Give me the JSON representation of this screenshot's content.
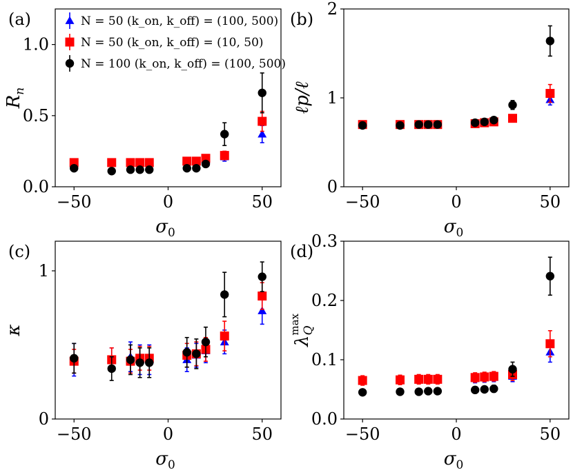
{
  "colors": {
    "blue": "#0000ff",
    "red": "#ff0000",
    "black": "#000000"
  },
  "legend": [
    {
      "label": "N = 50 (k_on, k_off) = (100, 500)",
      "color": "#0000ff",
      "marker": "triangle"
    },
    {
      "label": "N = 50 (k_on, k_off) = (10, 50)",
      "color": "#ff0000",
      "marker": "square"
    },
    {
      "label": "N = 100 (k_on, k_off) = (100, 500)",
      "color": "#000000",
      "marker": "circle"
    }
  ],
  "chart_data": [
    {
      "panel": "(a)",
      "type": "scatter",
      "xlabel": "σ0",
      "ylabel": "R_n",
      "xlim": [
        -60,
        60
      ],
      "ylim": [
        0,
        1.25
      ],
      "xticks": [
        -50,
        0,
        50
      ],
      "xtick_labels": [
        "−50",
        "0",
        "50"
      ],
      "yticks": [
        0,
        0.5,
        1.0
      ],
      "ytick_labels": [
        "0.0",
        "0.5",
        "1.0"
      ],
      "x": [
        -50,
        -30,
        -20,
        -15,
        -10,
        10,
        15,
        20,
        30,
        50
      ],
      "series": [
        {
          "name": "N = 50 (k_on, k_off) = (100, 500)",
          "marker": "triangle",
          "color": "#0000ff",
          "values": [
            0.17,
            0.17,
            0.17,
            0.17,
            0.17,
            0.18,
            0.18,
            0.19,
            0.21,
            0.37
          ],
          "errors": [
            0.02,
            0.02,
            0.02,
            0.02,
            0.02,
            0.02,
            0.02,
            0.02,
            0.03,
            0.06
          ]
        },
        {
          "name": "N = 50 (k_on, k_off) = (10, 50)",
          "marker": "square",
          "color": "#ff0000",
          "values": [
            0.17,
            0.17,
            0.17,
            0.17,
            0.17,
            0.18,
            0.18,
            0.2,
            0.22,
            0.46
          ],
          "errors": [
            0.02,
            0.02,
            0.02,
            0.02,
            0.02,
            0.02,
            0.02,
            0.02,
            0.03,
            0.07
          ]
        },
        {
          "name": "N = 100 (k_on, k_off) = (100, 500)",
          "marker": "circle",
          "color": "#000000",
          "values": [
            0.13,
            0.11,
            0.12,
            0.12,
            0.12,
            0.13,
            0.13,
            0.16,
            0.37,
            0.66
          ],
          "errors": [
            0.01,
            0.01,
            0.01,
            0.01,
            0.01,
            0.02,
            0.02,
            0.02,
            0.08,
            0.14
          ]
        }
      ]
    },
    {
      "panel": "(b)",
      "type": "scatter",
      "xlabel": "σ0",
      "ylabel": "ℓp/ℓ",
      "xlim": [
        -60,
        60
      ],
      "ylim": [
        0,
        2
      ],
      "xticks": [
        -50,
        0,
        50
      ],
      "xtick_labels": [
        "−50",
        "0",
        "50"
      ],
      "yticks": [
        0,
        1,
        2
      ],
      "ytick_labels": [
        "0",
        "1",
        "2"
      ],
      "x": [
        -50,
        -30,
        -20,
        -15,
        -10,
        10,
        15,
        20,
        30,
        50
      ],
      "series": [
        {
          "name": "N = 50 (k_on, k_off) = (100, 500)",
          "marker": "triangle",
          "color": "#0000ff",
          "values": [
            0.69,
            0.69,
            0.69,
            0.7,
            0.7,
            0.71,
            0.72,
            0.73,
            0.76,
            0.98
          ],
          "errors": [
            0.02,
            0.02,
            0.02,
            0.02,
            0.02,
            0.02,
            0.02,
            0.02,
            0.03,
            0.06
          ]
        },
        {
          "name": "N = 50 (k_on, k_off) = (10, 50)",
          "marker": "square",
          "color": "#ff0000",
          "values": [
            0.7,
            0.7,
            0.7,
            0.7,
            0.7,
            0.71,
            0.72,
            0.73,
            0.77,
            1.05
          ],
          "errors": [
            0.02,
            0.02,
            0.02,
            0.02,
            0.02,
            0.02,
            0.02,
            0.02,
            0.03,
            0.1
          ]
        },
        {
          "name": "N = 100 (k_on, k_off) = (100, 500)",
          "marker": "circle",
          "color": "#000000",
          "values": [
            0.69,
            0.69,
            0.7,
            0.7,
            0.7,
            0.72,
            0.73,
            0.75,
            0.92,
            1.64
          ],
          "errors": [
            0.02,
            0.02,
            0.02,
            0.02,
            0.02,
            0.02,
            0.02,
            0.03,
            0.05,
            0.17
          ]
        }
      ]
    },
    {
      "panel": "(c)",
      "type": "scatter",
      "xlabel": "σ0",
      "ylabel": "κ",
      "xlim": [
        -60,
        60
      ],
      "ylim": [
        0,
        1.2
      ],
      "xticks": [
        -50,
        0,
        50
      ],
      "xtick_labels": [
        "−50",
        "0",
        "50"
      ],
      "yticks": [
        0,
        1
      ],
      "ytick_labels": [
        "0",
        "1"
      ],
      "x": [
        -50,
        -30,
        -20,
        -15,
        -10,
        10,
        15,
        20,
        30,
        50
      ],
      "series": [
        {
          "name": "N = 50 (k_on, k_off) = (100, 500)",
          "marker": "triangle",
          "color": "#0000ff",
          "values": [
            0.4,
            0.4,
            0.42,
            0.4,
            0.4,
            0.4,
            0.43,
            0.46,
            0.52,
            0.73
          ],
          "errors": [
            0.11,
            0.08,
            0.1,
            0.1,
            0.1,
            0.08,
            0.08,
            0.08,
            0.08,
            0.09
          ]
        },
        {
          "name": "N = 50 (k_on, k_off) = (10, 50)",
          "marker": "square",
          "color": "#ff0000",
          "values": [
            0.39,
            0.4,
            0.39,
            0.41,
            0.41,
            0.43,
            0.44,
            0.47,
            0.56,
            0.83
          ],
          "errors": [
            0.08,
            0.08,
            0.08,
            0.08,
            0.08,
            0.08,
            0.08,
            0.08,
            0.1,
            0.09
          ]
        },
        {
          "name": "N = 100 (k_on, k_off) = (100, 500)",
          "marker": "circle",
          "color": "#000000",
          "values": [
            0.41,
            0.34,
            0.4,
            0.38,
            0.38,
            0.45,
            0.44,
            0.52,
            0.84,
            0.96
          ],
          "errors": [
            0.1,
            0.08,
            0.1,
            0.1,
            0.1,
            0.1,
            0.1,
            0.1,
            0.15,
            0.1
          ]
        }
      ]
    },
    {
      "panel": "(d)",
      "type": "scatter",
      "xlabel": "σ0",
      "ylabel": "λ_Q^max",
      "xlim": [
        -60,
        60
      ],
      "ylim": [
        0,
        0.3
      ],
      "xticks": [
        -50,
        0,
        50
      ],
      "xtick_labels": [
        "−50",
        "0",
        "50"
      ],
      "yticks": [
        0,
        0.1,
        0.2,
        0.3
      ],
      "ytick_labels": [
        "0.0",
        "0.1",
        "0.2",
        "0.3"
      ],
      "x": [
        -50,
        -30,
        -20,
        -15,
        -10,
        10,
        15,
        20,
        30,
        50
      ],
      "series": [
        {
          "name": "N = 50 (k_on, k_off) = (100, 500)",
          "marker": "triangle",
          "color": "#0000ff",
          "values": [
            0.065,
            0.066,
            0.066,
            0.067,
            0.067,
            0.068,
            0.069,
            0.07,
            0.072,
            0.113
          ],
          "errors": [
            0.006,
            0.006,
            0.006,
            0.006,
            0.006,
            0.007,
            0.007,
            0.007,
            0.009,
            0.017
          ]
        },
        {
          "name": "N = 50 (k_on, k_off) = (10, 50)",
          "marker": "square",
          "color": "#ff0000",
          "values": [
            0.065,
            0.066,
            0.067,
            0.067,
            0.067,
            0.07,
            0.071,
            0.072,
            0.075,
            0.127
          ],
          "errors": [
            0.008,
            0.008,
            0.008,
            0.008,
            0.008,
            0.008,
            0.008,
            0.008,
            0.01,
            0.022
          ]
        },
        {
          "name": "N = 100 (k_on, k_off) = (100, 500)",
          "marker": "circle",
          "color": "#000000",
          "values": [
            0.045,
            0.046,
            0.046,
            0.047,
            0.047,
            0.049,
            0.05,
            0.051,
            0.084,
            0.241
          ],
          "errors": [
            0.004,
            0.004,
            0.004,
            0.004,
            0.004,
            0.005,
            0.005,
            0.006,
            0.012,
            0.032
          ]
        }
      ]
    }
  ]
}
